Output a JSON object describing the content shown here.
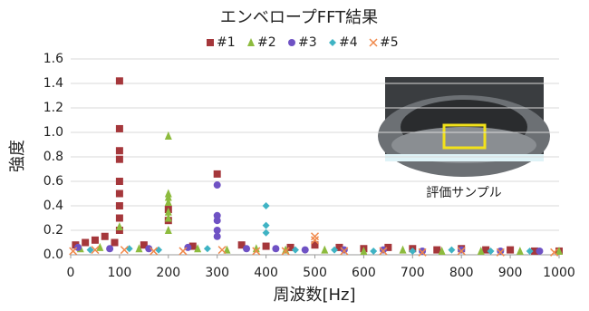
{
  "chart_data": {
    "type": "scatter",
    "title": "エンベロープFFT結果",
    "x_label": "周波数[Hz]",
    "y_label": "強度",
    "image_caption": "評価サンプル",
    "xlim": [
      0,
      1000
    ],
    "xticks": [
      0,
      100,
      200,
      300,
      400,
      500,
      600,
      700,
      800,
      900,
      1000
    ],
    "ylim": [
      0,
      1.6
    ],
    "yticks": [
      {
        "value": 0,
        "label": "0.0"
      },
      0.2,
      0.4,
      0.6,
      0.8,
      {
        "value": 1,
        "label": "1.0"
      },
      1.2,
      1.4,
      1.6
    ],
    "grid": true,
    "series": [
      {
        "name": "#1",
        "color": "#a5373b",
        "marker": "square",
        "x": [
          10,
          30,
          50,
          70,
          90,
          100,
          100,
          100,
          100,
          100,
          100,
          100,
          100,
          100,
          150,
          200,
          200,
          250,
          300,
          350,
          400,
          450,
          500,
          550,
          600,
          650,
          700,
          750,
          800,
          850,
          900,
          950,
          1000
        ],
        "values": [
          0.08,
          0.1,
          0.12,
          0.15,
          0.1,
          1.42,
          1.03,
          0.85,
          0.78,
          0.6,
          0.5,
          0.4,
          0.3,
          0.2,
          0.08,
          0.37,
          0.28,
          0.07,
          0.66,
          0.08,
          0.07,
          0.06,
          0.08,
          0.06,
          0.05,
          0.06,
          0.05,
          0.04,
          0.05,
          0.04,
          0.04,
          0.03,
          0.03
        ]
      },
      {
        "name": "#2",
        "color": "#8dbb3e",
        "marker": "triangle",
        "x": [
          20,
          60,
          100,
          140,
          200,
          200,
          200,
          200,
          200,
          200,
          200,
          260,
          320,
          380,
          440,
          520,
          600,
          680,
          760,
          840,
          920,
          1000
        ],
        "values": [
          0.05,
          0.06,
          0.23,
          0.05,
          0.97,
          0.5,
          0.47,
          0.43,
          0.35,
          0.3,
          0.2,
          0.05,
          0.04,
          0.05,
          0.04,
          0.04,
          0.03,
          0.04,
          0.03,
          0.03,
          0.03,
          0.03
        ]
      },
      {
        "name": "#3",
        "color": "#6f52c4",
        "marker": "circle",
        "x": [
          15,
          80,
          160,
          240,
          300,
          300,
          300,
          300,
          300,
          360,
          420,
          480,
          560,
          640,
          720,
          800,
          880,
          960
        ],
        "values": [
          0.06,
          0.05,
          0.05,
          0.06,
          0.57,
          0.32,
          0.28,
          0.2,
          0.15,
          0.05,
          0.05,
          0.04,
          0.04,
          0.04,
          0.03,
          0.04,
          0.03,
          0.03
        ]
      },
      {
        "name": "#4",
        "color": "#3fb3c4",
        "marker": "diamond",
        "x": [
          40,
          120,
          180,
          280,
          400,
          400,
          400,
          460,
          540,
          620,
          700,
          780,
          860,
          940
        ],
        "values": [
          0.04,
          0.05,
          0.04,
          0.05,
          0.4,
          0.24,
          0.18,
          0.04,
          0.04,
          0.03,
          0.03,
          0.04,
          0.03,
          0.03
        ]
      },
      {
        "name": "#5",
        "color": "#f0884a",
        "marker": "x",
        "x": [
          5,
          50,
          110,
          170,
          230,
          310,
          380,
          440,
          500,
          500,
          560,
          640,
          720,
          800,
          880,
          990
        ],
        "values": [
          0.03,
          0.04,
          0.04,
          0.03,
          0.03,
          0.04,
          0.03,
          0.03,
          0.15,
          0.12,
          0.03,
          0.03,
          0.02,
          0.03,
          0.02,
          0.02
        ]
      }
    ]
  }
}
